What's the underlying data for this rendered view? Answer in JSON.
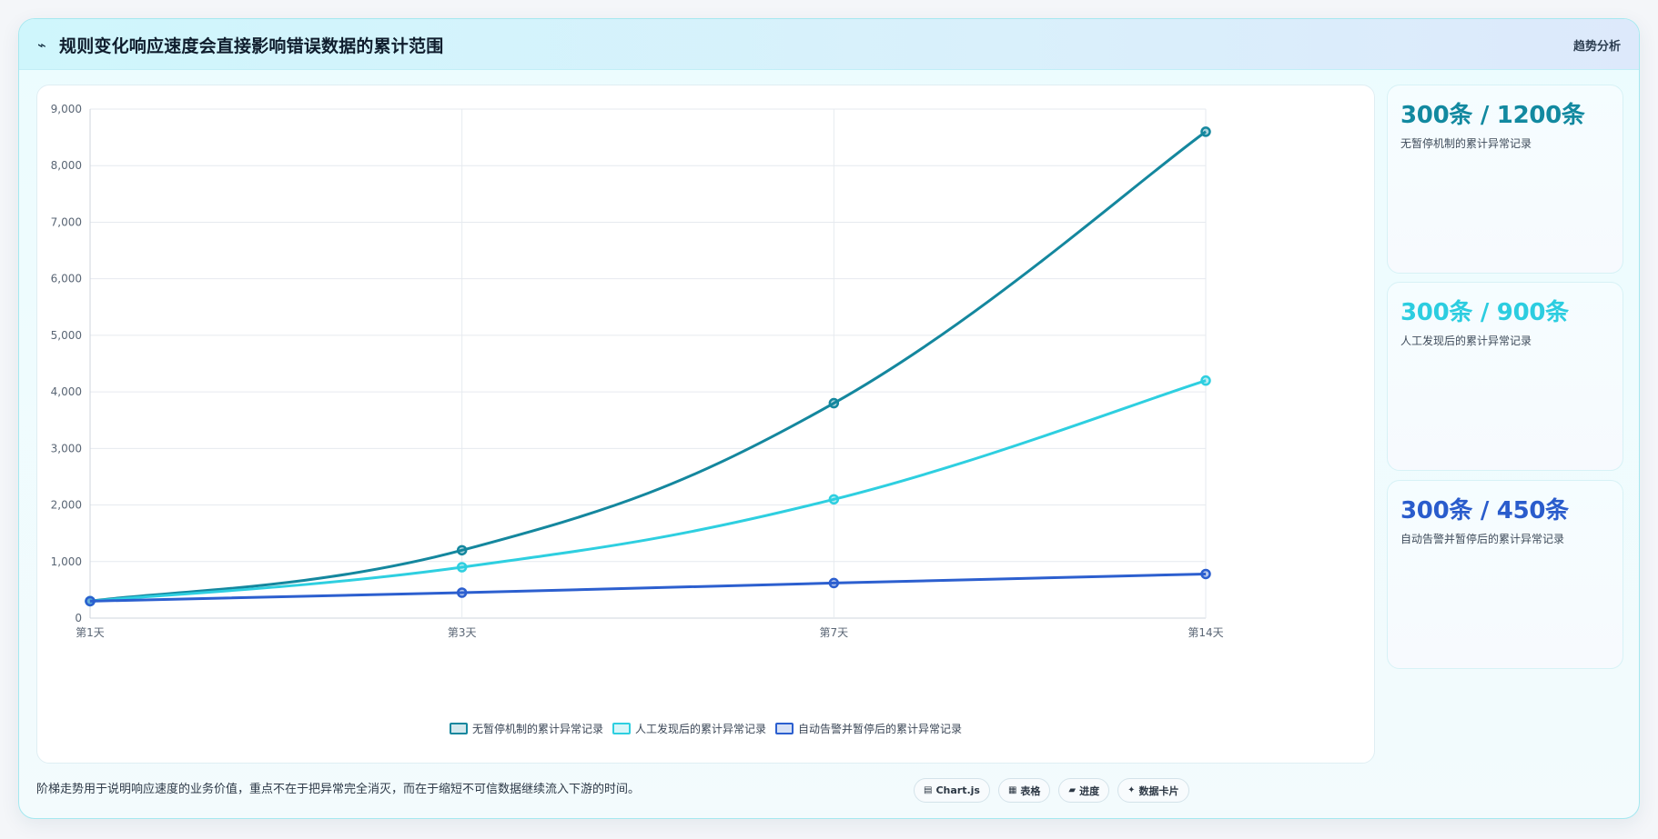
{
  "header": {
    "icon": "trend-line-icon",
    "icon_glyph": "⌁",
    "title": "规则变化响应速度会直接影响错误数据的累计范围",
    "tag": "趋势分析"
  },
  "chart_data": {
    "type": "line",
    "categories": [
      "第1天",
      "第3天",
      "第7天",
      "第14天"
    ],
    "ylim": [
      0,
      9000
    ],
    "yticks": [
      0,
      1000,
      2000,
      3000,
      4000,
      5000,
      6000,
      7000,
      8000,
      9000
    ],
    "ytick_labels": [
      "0",
      "1,000",
      "2,000",
      "3,000",
      "4,000",
      "5,000",
      "6,000",
      "7,000",
      "8,000",
      "9,000"
    ],
    "grid": true,
    "legend_position": "bottom",
    "series": [
      {
        "name": "无暂停机制的累计异常记录",
        "color": "#14879e",
        "values": [
          300,
          1200,
          3800,
          8600
        ]
      },
      {
        "name": "人工发现后的累计异常记录",
        "color": "#2ecfe0",
        "values": [
          300,
          900,
          2100,
          4200
        ]
      },
      {
        "name": "自动告警并暂停后的累计异常记录",
        "color": "#2c5fcf",
        "values": [
          300,
          450,
          620,
          780
        ]
      }
    ]
  },
  "side_cards": [
    {
      "value": "300条 / 1200条",
      "label": "无暂停机制的累计异常记录",
      "color": "#1289a0"
    },
    {
      "value": "300条 / 900条",
      "label": "人工发现后的累计异常记录",
      "color": "#2ccde0"
    },
    {
      "value": "300条 / 450条",
      "label": "自动告警并暂停后的累计异常记录",
      "color": "#2a5ccc"
    }
  ],
  "footer": {
    "note": "阶梯走势用于说明响应速度的业务价值，重点不在于把异常完全消灭，而在于缩短不可信数据继续流入下游的时间。",
    "chips": [
      {
        "icon": "chart-icon",
        "glyph": "▤",
        "label": "Chart.js"
      },
      {
        "icon": "table-icon",
        "glyph": "▦",
        "label": "表格"
      },
      {
        "icon": "progress-icon",
        "glyph": "▰",
        "label": "进度"
      },
      {
        "icon": "card-icon",
        "glyph": "✦",
        "label": "数据卡片"
      }
    ]
  }
}
